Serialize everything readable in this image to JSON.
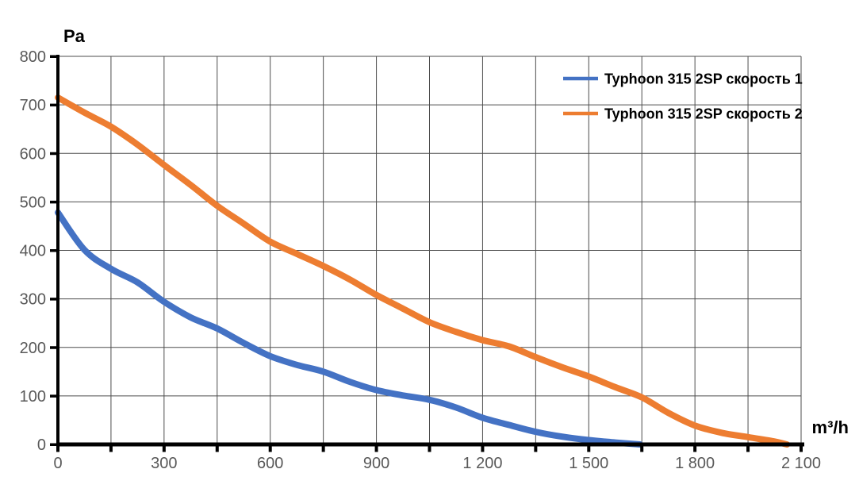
{
  "chart_data": {
    "type": "line",
    "title": "",
    "xlabel": "m³/h",
    "ylabel": "Pa",
    "xlim": [
      0,
      2100
    ],
    "ylim": [
      0,
      800
    ],
    "x_major_tick_step": 300,
    "x_minor_tick_step": 150,
    "y_tick_step": 100,
    "x_tick_labels": [
      "0",
      "300",
      "600",
      "900",
      "1 200",
      "1 500",
      "1 800",
      "2 100"
    ],
    "y_tick_labels": [
      "0",
      "100",
      "200",
      "300",
      "400",
      "500",
      "600",
      "700",
      "800"
    ],
    "grid": true,
    "legend_position": "top-right",
    "series": [
      {
        "name": "Typhoon 315 2SP скорость 1",
        "color": "#4472C4",
        "points": [
          [
            0,
            478
          ],
          [
            75,
            401
          ],
          [
            150,
            362
          ],
          [
            225,
            334
          ],
          [
            300,
            294
          ],
          [
            375,
            262
          ],
          [
            450,
            239
          ],
          [
            525,
            209
          ],
          [
            600,
            182
          ],
          [
            675,
            164
          ],
          [
            750,
            150
          ],
          [
            825,
            129
          ],
          [
            900,
            112
          ],
          [
            975,
            101
          ],
          [
            1050,
            92
          ],
          [
            1125,
            76
          ],
          [
            1200,
            55
          ],
          [
            1275,
            40
          ],
          [
            1350,
            26
          ],
          [
            1425,
            16
          ],
          [
            1500,
            9
          ],
          [
            1575,
            4
          ],
          [
            1645,
            0
          ]
        ]
      },
      {
        "name": "Typhoon 315 2SP скорость 2",
        "color": "#ED7D31",
        "points": [
          [
            0,
            715
          ],
          [
            75,
            684
          ],
          [
            150,
            655
          ],
          [
            225,
            618
          ],
          [
            300,
            576
          ],
          [
            375,
            535
          ],
          [
            450,
            492
          ],
          [
            525,
            455
          ],
          [
            600,
            418
          ],
          [
            675,
            393
          ],
          [
            750,
            368
          ],
          [
            825,
            340
          ],
          [
            900,
            308
          ],
          [
            975,
            280
          ],
          [
            1050,
            252
          ],
          [
            1125,
            232
          ],
          [
            1200,
            215
          ],
          [
            1275,
            202
          ],
          [
            1350,
            180
          ],
          [
            1425,
            159
          ],
          [
            1500,
            140
          ],
          [
            1575,
            118
          ],
          [
            1650,
            97
          ],
          [
            1725,
            65
          ],
          [
            1800,
            39
          ],
          [
            1875,
            24
          ],
          [
            1950,
            15
          ],
          [
            2025,
            6
          ],
          [
            2060,
            0
          ]
        ]
      }
    ]
  },
  "style": {
    "grid_color": "#4d4d4d",
    "axis_color": "#000000",
    "tick_label_color": "#595959",
    "series_stroke_width": 8,
    "legend_swatch_width": 44,
    "legend_swatch_thickness": 4.5
  }
}
